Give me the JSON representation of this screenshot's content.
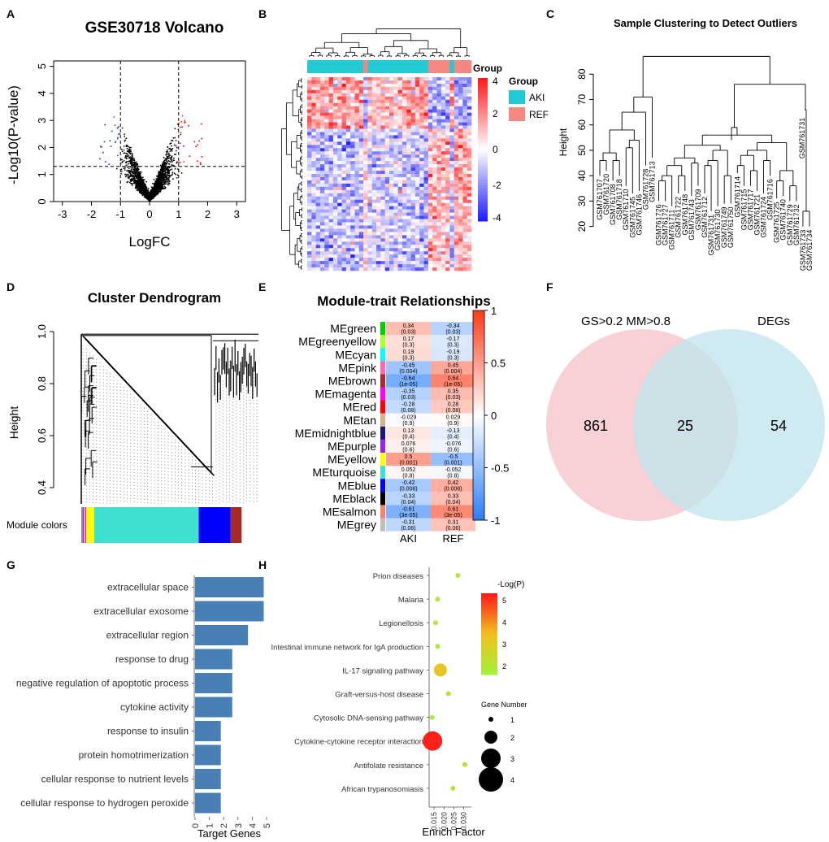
{
  "panel_letters": [
    "A",
    "B",
    "C",
    "D",
    "E",
    "F",
    "G",
    "H"
  ],
  "chart_data": [
    {
      "id": "A",
      "type": "scatter",
      "title": "GSE30718 Volcano",
      "xlabel": "LogFC",
      "ylabel": "-Log10(P-value)",
      "xlim": [
        -3.3,
        3.3
      ],
      "ylim": [
        0,
        5.2
      ],
      "xticks": [
        "-3",
        "-2",
        "-1",
        "0",
        "1",
        "2",
        "3"
      ],
      "yticks": [
        "0",
        "1",
        "2",
        "3",
        "4",
        "5"
      ],
      "thresholds": {
        "logfc": [
          -1,
          1
        ],
        "p": 1.3
      },
      "colors": {
        "up": "#e41a1c",
        "down": "#3b4cc0",
        "ns": "#000000"
      }
    },
    {
      "id": "B",
      "type": "heatmap",
      "legend_title": "Group",
      "groups": [
        {
          "name": "AKI",
          "color": "#22cbd4"
        },
        {
          "name": "REF",
          "color": "#f4877f"
        }
      ],
      "scale_ticks": [
        "4",
        "2",
        "0",
        "-2",
        "-4"
      ],
      "scale_range": [
        -4,
        4
      ],
      "colors": {
        "low": "#1f1fff",
        "mid": "#ffffff",
        "high": "#ff1a1a"
      }
    },
    {
      "id": "C",
      "type": "dendrogram",
      "title": "Sample Clustering to Detect Outliers",
      "ylabel": "Height",
      "yticks": [
        "20",
        "30",
        "40",
        "50",
        "60",
        "70",
        "80"
      ],
      "ylim": [
        17,
        90
      ],
      "samples": [
        "GSM761707",
        "GSM761720",
        "GSM761708",
        "GSM761718",
        "GSM761710",
        "GSM761745",
        "GSM761746",
        "GSM761728",
        "GSM761713",
        "GSM761726",
        "GSM761727",
        "GSM761711",
        "GSM761722",
        "GSM761748",
        "GSM761743",
        "GSM761709",
        "GSM761712",
        "GSM761731",
        "GSM761730",
        "GSM761749",
        "GSM761750",
        "GSM761714",
        "GSM761715",
        "GSM761717",
        "GSM761721",
        "GSM761724",
        "GSM761716",
        "GSM761725",
        "GSM761740",
        "GSM761729",
        "GSM761732",
        "GSM761733",
        "GSM761734"
      ],
      "outlier_label": "GSM761731"
    },
    {
      "id": "D",
      "type": "dendrogram",
      "title": "Cluster Dendrogram",
      "ylabel": "Height",
      "yticks": [
        "1.0",
        "0.8",
        "0.6",
        "0.4"
      ],
      "module_label": "Module colors",
      "module_colors": [
        {
          "color": "#8b8b8b",
          "frac": 0.008
        },
        {
          "color": "#a020f0",
          "frac": 0.006
        },
        {
          "color": "#e0b68a",
          "frac": 0.008
        },
        {
          "color": "#ff00ff",
          "frac": 0.006
        },
        {
          "color": "#ffff00",
          "frac": 0.045
        },
        {
          "color": "#40e0d0",
          "frac": 0.59
        },
        {
          "color": "#0000ff",
          "frac": 0.18
        },
        {
          "color": "#a52a2a",
          "frac": 0.062
        }
      ]
    },
    {
      "id": "E",
      "type": "heatmap",
      "title": "Module-trait Relationships",
      "columns": [
        "AKI",
        "REF"
      ],
      "scale_ticks": [
        "1",
        "0.5",
        "0",
        "-0.5",
        "-1"
      ],
      "rows": [
        {
          "name": "MEgreen",
          "color": "#00cd00",
          "values": [
            0.34,
            -0.34
          ],
          "labels": [
            "0.34",
            "-0.34"
          ],
          "p": [
            "(0.03)",
            "(0.03)"
          ]
        },
        {
          "name": "MEgreenyellow",
          "color": "#adff2f",
          "values": [
            0.17,
            -0.17
          ],
          "labels": [
            "0.17",
            "-0.17"
          ],
          "p": [
            "(0.3)",
            "(0.3)"
          ]
        },
        {
          "name": "MEcyan",
          "color": "#00ffff",
          "values": [
            0.19,
            -0.19
          ],
          "labels": [
            "0.19",
            "-0.19"
          ],
          "p": [
            "(0.3)",
            "(0.3)"
          ]
        },
        {
          "name": "MEpink",
          "color": "#ff69b4",
          "values": [
            -0.45,
            0.45
          ],
          "labels": [
            "-0.45",
            "0.45"
          ],
          "p": [
            "(0.004)",
            "(0.004)"
          ]
        },
        {
          "name": "MEbrown",
          "color": "#a52a2a",
          "values": [
            -0.64,
            0.64
          ],
          "labels": [
            "-0.64",
            "0.64"
          ],
          "p": [
            "(1e-05)",
            "(1e-05)"
          ]
        },
        {
          "name": "MEmagenta",
          "color": "#ff00ff",
          "values": [
            -0.35,
            0.35
          ],
          "labels": [
            "-0.35",
            "0.35"
          ],
          "p": [
            "(0.03)",
            "(0.03)"
          ]
        },
        {
          "name": "MEred",
          "color": "#ff0000",
          "values": [
            -0.28,
            0.28
          ],
          "labels": [
            "-0.28",
            "0.28"
          ],
          "p": [
            "(0.08)",
            "(0.08)"
          ]
        },
        {
          "name": "MEtan",
          "color": "#d2b48c",
          "values": [
            -0.029,
            0.029
          ],
          "labels": [
            "-0.029",
            "0.029"
          ],
          "p": [
            "(0.9)",
            "(0.9)"
          ]
        },
        {
          "name": "MEmidnightblue",
          "color": "#191970",
          "values": [
            0.13,
            -0.13
          ],
          "labels": [
            "0.13",
            "-0.13"
          ],
          "p": [
            "(0.4)",
            "(0.4)"
          ]
        },
        {
          "name": "MEpurple",
          "color": "#a020f0",
          "values": [
            0.076,
            -0.076
          ],
          "labels": [
            "0.076",
            "-0.076"
          ],
          "p": [
            "(0.6)",
            "(0.6)"
          ]
        },
        {
          "name": "MEyellow",
          "color": "#ffff00",
          "values": [
            0.5,
            -0.5
          ],
          "labels": [
            "0.5",
            "-0.5"
          ],
          "p": [
            "(0.001)",
            "(0.001)"
          ]
        },
        {
          "name": "MEturquoise",
          "color": "#40e0d0",
          "values": [
            0.052,
            -0.052
          ],
          "labels": [
            "0.052",
            "-0.052"
          ],
          "p": [
            "(0.8)",
            "(0.8)"
          ]
        },
        {
          "name": "MEblue",
          "color": "#0000ff",
          "values": [
            -0.42,
            0.42
          ],
          "labels": [
            "-0.42",
            "0.42"
          ],
          "p": [
            "(0.008)",
            "(0.008)"
          ]
        },
        {
          "name": "MEblack",
          "color": "#000000",
          "values": [
            -0.33,
            0.33
          ],
          "labels": [
            "-0.33",
            "0.33"
          ],
          "p": [
            "(0.04)",
            "(0.04)"
          ]
        },
        {
          "name": "MEsalmon",
          "color": "#fa8072",
          "values": [
            -0.61,
            0.61
          ],
          "labels": [
            "-0.61",
            "0.61"
          ],
          "p": [
            "(3e-05)",
            "(3e-05)"
          ]
        },
        {
          "name": "MEgrey",
          "color": "#bebebe",
          "values": [
            -0.31,
            0.31
          ],
          "labels": [
            "-0.31",
            "0.31"
          ],
          "p": [
            "(0.06)",
            "(0.06)"
          ]
        }
      ]
    },
    {
      "id": "F",
      "type": "venn",
      "sets": [
        {
          "name": "GS>0.2 MM>0.8",
          "color": "#f6c1c9"
        },
        {
          "name": "DEGs",
          "color": "#bfe3ec"
        }
      ],
      "values": {
        "left_only": 861,
        "both": 25,
        "right_only": 54
      }
    },
    {
      "id": "G",
      "type": "bar",
      "orientation": "horizontal",
      "xlabel": "Target Genes",
      "xlim": [
        0,
        5
      ],
      "xticks": [
        "0",
        "1",
        "2",
        "3",
        "4",
        "5"
      ],
      "bar_color": "#4a7fb5",
      "categories": [
        "extracellular space",
        "extracellular exosome",
        "extracellular region",
        "response to drug",
        "negative regulation of apoptotic process",
        "cytokine activity",
        "response to insulin",
        "protein homotrimerization",
        "cellular response to nutrient levels",
        "cellular response to hydrogen peroxide"
      ],
      "values": [
        4.8,
        4.8,
        3.7,
        2.6,
        2.6,
        2.6,
        1.8,
        1.8,
        1.8,
        1.8
      ]
    },
    {
      "id": "H",
      "type": "scatter",
      "xlabel": "Enrich Factor",
      "xticks": [
        "0.015",
        "0.020",
        "0.025",
        "0.030"
      ],
      "xlim": [
        0.0125,
        0.033
      ],
      "color_legend_title": "-Log(P)",
      "color_ticks": [
        "5",
        "4",
        "3",
        "2"
      ],
      "color_range": [
        1.6,
        5.3
      ],
      "size_legend_title": "Gene Number",
      "size_ticks": [
        "1",
        "2",
        "3",
        "4"
      ],
      "terms": [
        {
          "name": "Prion diseases",
          "x": 0.027,
          "logp": 1.9,
          "genes": 1
        },
        {
          "name": "Malaria",
          "x": 0.0168,
          "logp": 1.8,
          "genes": 1
        },
        {
          "name": "Legionellosis",
          "x": 0.0158,
          "logp": 1.8,
          "genes": 1
        },
        {
          "name": "Intestinal immune network for IgA production",
          "x": 0.0168,
          "logp": 1.8,
          "genes": 1
        },
        {
          "name": "IL-17 signaling pathway",
          "x": 0.0182,
          "logp": 3.2,
          "genes": 2
        },
        {
          "name": "Graft-versus-host disease",
          "x": 0.0222,
          "logp": 1.9,
          "genes": 1
        },
        {
          "name": "Cytosolic DNA-sensing pathway",
          "x": 0.014,
          "logp": 1.8,
          "genes": 1
        },
        {
          "name": "Cytokine-cytokine receptor interaction",
          "x": 0.0142,
          "logp": 5.2,
          "genes": 3
        },
        {
          "name": "Antifolate resistance",
          "x": 0.0305,
          "logp": 1.9,
          "genes": 1
        },
        {
          "name": "African trypanosomiasis",
          "x": 0.0245,
          "logp": 1.9,
          "genes": 1
        }
      ]
    }
  ]
}
